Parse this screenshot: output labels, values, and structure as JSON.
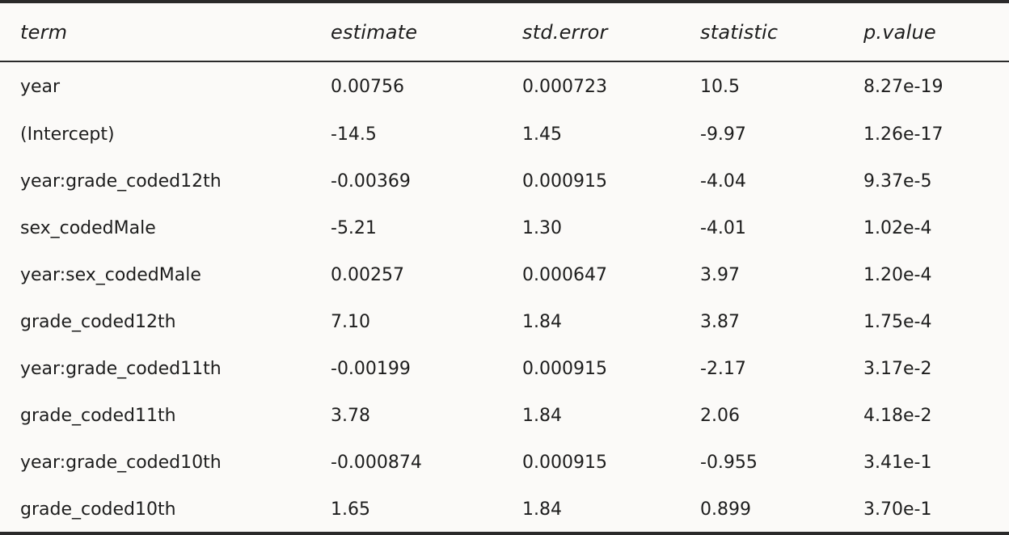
{
  "table": {
    "headers": [
      "term",
      "estimate",
      "std.error",
      "statistic",
      "p.value"
    ],
    "rows": [
      [
        "year",
        "0.00756",
        "0.000723",
        "10.5",
        "8.27e-19"
      ],
      [
        "(Intercept)",
        "-14.5",
        "1.45",
        "-9.97",
        "1.26e-17"
      ],
      [
        "year:grade_coded12th",
        "-0.00369",
        "0.000915",
        "-4.04",
        "9.37e-5"
      ],
      [
        "sex_codedMale",
        "-5.21",
        "1.30",
        "-4.01",
        "1.02e-4"
      ],
      [
        "year:sex_codedMale",
        "0.00257",
        "0.000647",
        "3.97",
        "1.20e-4"
      ],
      [
        "grade_coded12th",
        "7.10",
        "1.84",
        "3.87",
        "1.75e-4"
      ],
      [
        "year:grade_coded11th",
        "-0.00199",
        "0.000915",
        "-2.17",
        "3.17e-2"
      ],
      [
        "grade_coded11th",
        "3.78",
        "1.84",
        "2.06",
        "4.18e-2"
      ],
      [
        "year:grade_coded10th",
        "-0.000874",
        "0.000915",
        "-0.955",
        "3.41e-1"
      ],
      [
        "grade_coded10th",
        "1.65",
        "1.84",
        "0.899",
        "3.70e-1"
      ]
    ]
  }
}
